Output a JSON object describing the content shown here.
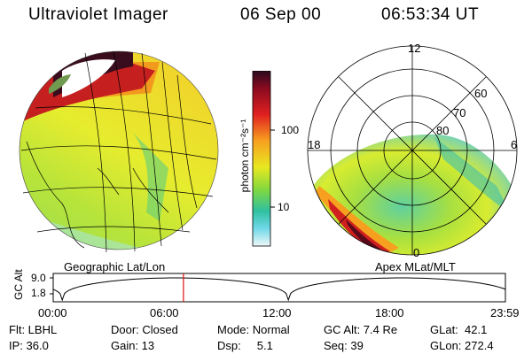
{
  "header": {
    "instrument": "Ultraviolet Imager",
    "date": "06 Sep 00",
    "time": "06:53:34 UT"
  },
  "colorbar": {
    "unit_label": "photon cm⁻²s⁻¹",
    "tick_100": "100",
    "tick_10": "10",
    "scale": "log"
  },
  "polar": {
    "mlt_labels": {
      "top": "12",
      "left": "18",
      "right": "6",
      "bottom": "0"
    },
    "lat_labels": {
      "l60": "60",
      "l70": "70",
      "l80": "80"
    }
  },
  "panel_labels": {
    "left": "Geographic Lat/Lon",
    "right": "Apex MLat/MLT"
  },
  "orbit": {
    "axis_label": "GC Alt",
    "y_ticks": [
      "9.0",
      "1.8"
    ],
    "x_ticks": [
      "00:00",
      "06:00",
      "12:00",
      "18:00",
      "23:59"
    ],
    "current_time_fraction": 0.288
  },
  "info": {
    "row1": {
      "flt": "Flt: LBHL",
      "door": "Door: Closed",
      "mode": "Mode: Normal",
      "gcalt": "GC Alt: 7.4 Re",
      "glat": "GLat:  42.1"
    },
    "row2": {
      "ip": "IP: 36.0",
      "gain": "Gain: 13",
      "dsp": "Dsp:     5.1",
      "seq": "Seq: 39",
      "glon": "GLon: 272.4"
    }
  }
}
